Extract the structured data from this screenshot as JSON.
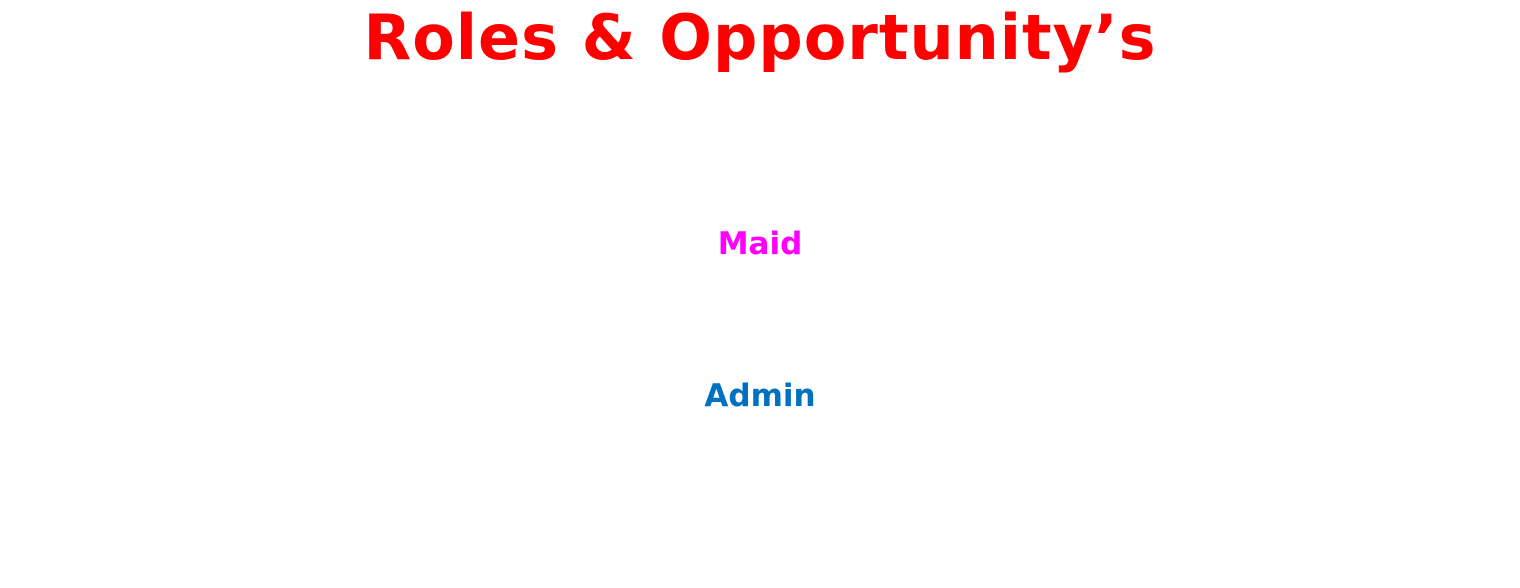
{
  "title": {
    "text": "Roles & Opportunity’s",
    "color": "#ff0000"
  },
  "roles": [
    {
      "label": "Maid",
      "color": "#ff00ff"
    },
    {
      "label": "Admin",
      "color": "#0070c0"
    }
  ]
}
